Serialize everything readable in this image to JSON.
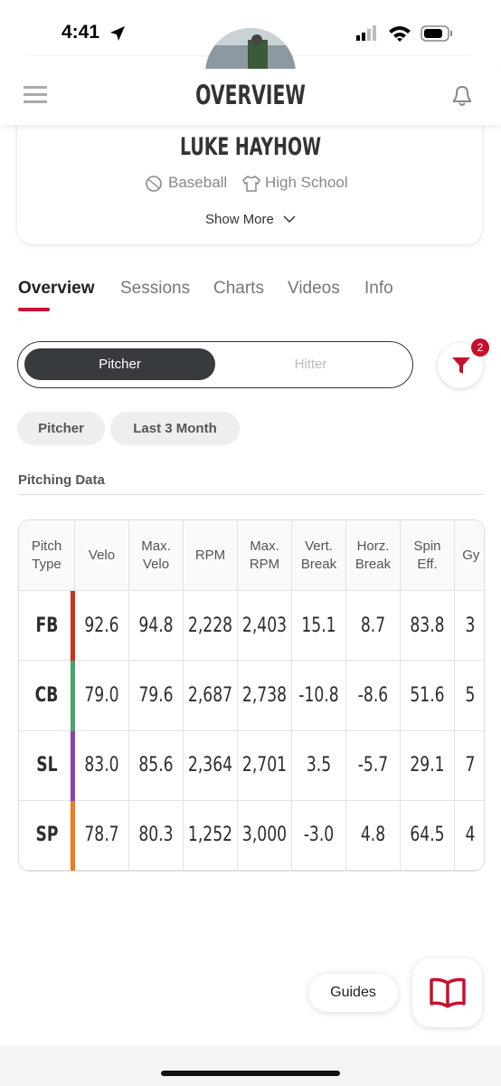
{
  "status": {
    "time": "4:41"
  },
  "header": {
    "title": "OVERVIEW"
  },
  "profile": {
    "name": "LUKE HAYHOW",
    "sport": "Baseball",
    "level": "High School",
    "show_more": "Show More"
  },
  "tabs": [
    "Overview",
    "Sessions",
    "Charts",
    "Videos",
    "Info"
  ],
  "role_toggle": [
    "Pitcher",
    "Hitter"
  ],
  "filter_badge": "2",
  "chips": [
    "Pitcher",
    "Last 3 Month"
  ],
  "section_title": "Pitching Data",
  "table": {
    "columns": [
      "Pitch Type",
      "Velo",
      "Max. Velo",
      "RPM",
      "Max. RPM",
      "Vert. Break",
      "Horz. Break",
      "Spin Eff.",
      "Gy De"
    ],
    "rows": [
      {
        "pitch": "FB",
        "color": "#c4351f",
        "cells": [
          "92.6",
          "94.8",
          "2,228",
          "2,403",
          "15.1",
          "8.7",
          "83.8",
          "3"
        ]
      },
      {
        "pitch": "CB",
        "color": "#4aa36b",
        "cells": [
          "79.0",
          "79.6",
          "2,687",
          "2,738",
          "-10.8",
          "-8.6",
          "51.6",
          "5"
        ]
      },
      {
        "pitch": "SL",
        "color": "#8e45a0",
        "cells": [
          "83.0",
          "85.6",
          "2,364",
          "2,701",
          "3.5",
          "-5.7",
          "29.1",
          "7"
        ]
      },
      {
        "pitch": "SP",
        "color": "#f07a1c",
        "cells": [
          "78.7",
          "80.3",
          "1,252",
          "3,000",
          "-3.0",
          "4.8",
          "64.5",
          "4"
        ]
      }
    ]
  },
  "guides": "Guides"
}
